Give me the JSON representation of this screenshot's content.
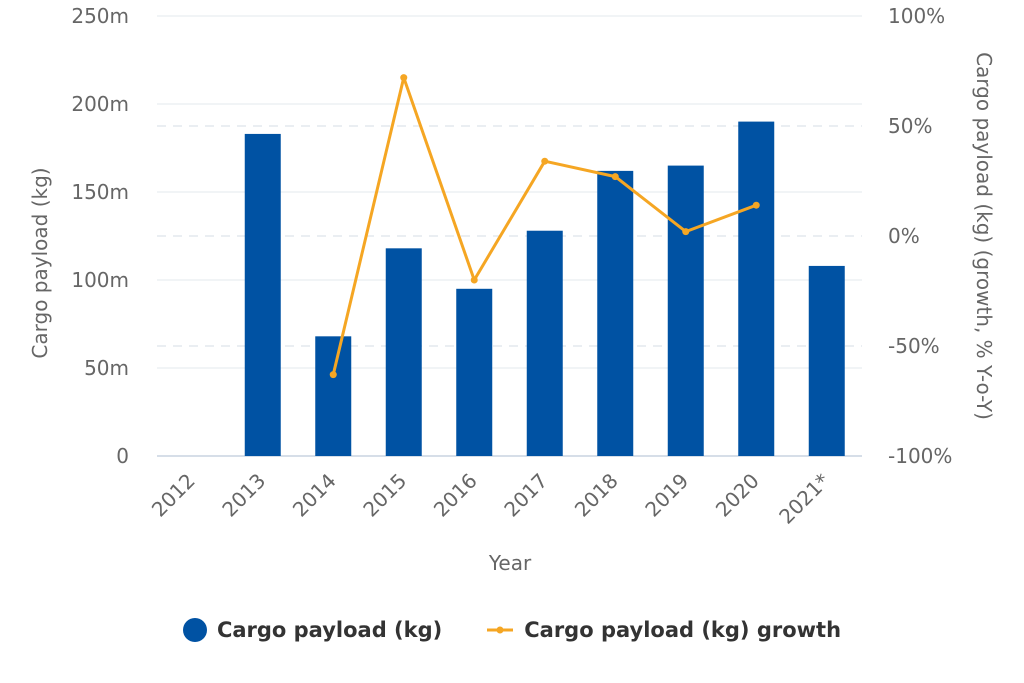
{
  "chart_data": {
    "type": "bar",
    "categories": [
      "2012",
      "2013",
      "2014",
      "2015",
      "2016",
      "2017",
      "2018",
      "2019",
      "2020",
      "2021*"
    ],
    "xlabel": "Year",
    "ylabel": "Cargo payload (kg)",
    "y2label": "Cargo payload (kg) (growth, % Y-o-Y)",
    "ylim": [
      0,
      250
    ],
    "yticks": [
      "0",
      "50m",
      "100m",
      "150m",
      "200m",
      "250m"
    ],
    "y2lim": [
      -100,
      100
    ],
    "y2ticks": [
      "-100%",
      "-50%",
      "0%",
      "50%",
      "100%"
    ],
    "series": [
      {
        "name": "Cargo payload (kg)",
        "type": "bar",
        "axis": "left",
        "color": "#0052a3",
        "values": [
          null,
          183,
          68,
          118,
          95,
          128,
          162,
          165,
          190,
          108
        ]
      },
      {
        "name": "Cargo payload (kg) growth",
        "type": "line",
        "axis": "right",
        "color": "#f5a623",
        "values": [
          null,
          null,
          -63,
          72,
          -20,
          34,
          27,
          2,
          14,
          null
        ]
      }
    ],
    "grid": true,
    "legend": "bottom-center"
  }
}
